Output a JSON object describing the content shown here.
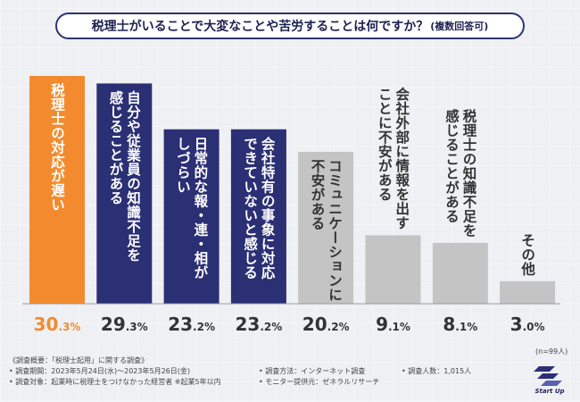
{
  "header": {
    "title": "税理士がいることで大変なことや苦労することは何ですか？",
    "title_note": "(複数回答可)"
  },
  "chart_data": {
    "type": "bar",
    "title": "税理士がいることで大変なことや苦労することは何ですか？(複数回答可)",
    "categories": [
      "税理士の対応が遅い",
      "自分や従業員の知識不足を感じることがある",
      "日常的な報・連・相がしづらい",
      "会社特有の事象に対応できていないと感じる",
      "コミュニケーションに不安がある",
      "会社外部に情報を出すことに不安がある",
      "税理士の知識不足を感じることがある",
      "その他"
    ],
    "label_lines": [
      [
        "税理士の対応が遅い"
      ],
      [
        "自分や従業員の知識不足を",
        "感じることがある"
      ],
      [
        "日常的な報・連・相が",
        "しづらい"
      ],
      [
        "会社特有の事象に対応",
        "できていないと感じる"
      ],
      [
        "コミュニケーションに",
        "不安がある"
      ],
      [
        "会社外部に情報を出す",
        "ことに不安がある"
      ],
      [
        "税理士の知識不足を",
        "感じることがある"
      ],
      [
        "その他"
      ]
    ],
    "values": [
      30.3,
      29.3,
      23.2,
      23.2,
      20.2,
      9.1,
      8.1,
      3.0
    ],
    "value_int": [
      "30",
      "29",
      "23",
      "23",
      "20",
      "9",
      "8",
      "3"
    ],
    "value_dec": [
      ".3%",
      ".3%",
      ".2%",
      ".2%",
      ".2%",
      ".1%",
      ".1%",
      ".0%"
    ],
    "ylim": [
      0,
      30.3
    ],
    "colors": {
      "top": "#f38b2e",
      "high": "#2b2f74",
      "rest": "#c4c4c4",
      "top_text": "#f38b2e",
      "value_text": "#333333"
    }
  },
  "notes": {
    "n_label": "(n=99人)",
    "summary": "《調査概要：「税理士起用」に関する調査》",
    "period": "• 調査期間：2023年5月24日(水)～2023年5月26日(金)",
    "method": "• 調査方法：インターネット調査",
    "people": "• 調査人数：1,015人",
    "target": "• 調査対象：起業時に税理士をつけなかった経営者 ※起業5年以内",
    "provider": "• モニター提供元：ゼネラルリサーチ"
  },
  "brand": {
    "logo_text": "Start Up",
    "logo_icon": "start-up-logo-icon"
  }
}
